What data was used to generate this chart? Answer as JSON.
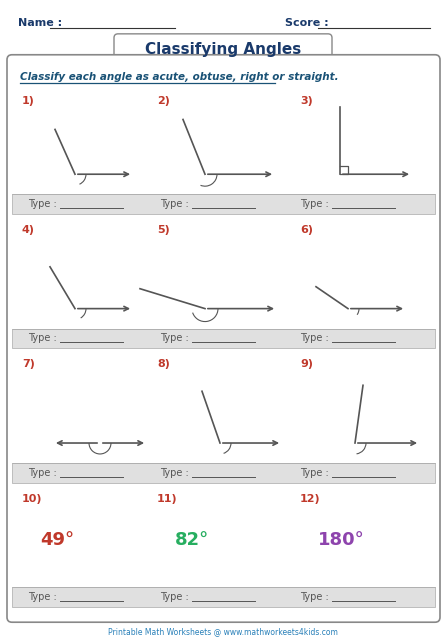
{
  "title": "Classifying Angles",
  "subtitle": "Classify each angle as acute, obtuse, right or straight.",
  "name_label": "Name :",
  "score_label": "Score :",
  "type_label": "Type :",
  "footer": "Printable Math Worksheets @ www.mathworkeets4kids.com",
  "bg_color": "#ffffff",
  "box_color": "#555555",
  "header_color": "#1a3a6b",
  "subtitle_color": "#1a5276",
  "number_color": "#c0392b",
  "type_bg": "#e0e0e0",
  "angle_color": "#555555",
  "degree_colors": [
    "#c0392b",
    "#27ae60",
    "#8e44ad"
  ]
}
